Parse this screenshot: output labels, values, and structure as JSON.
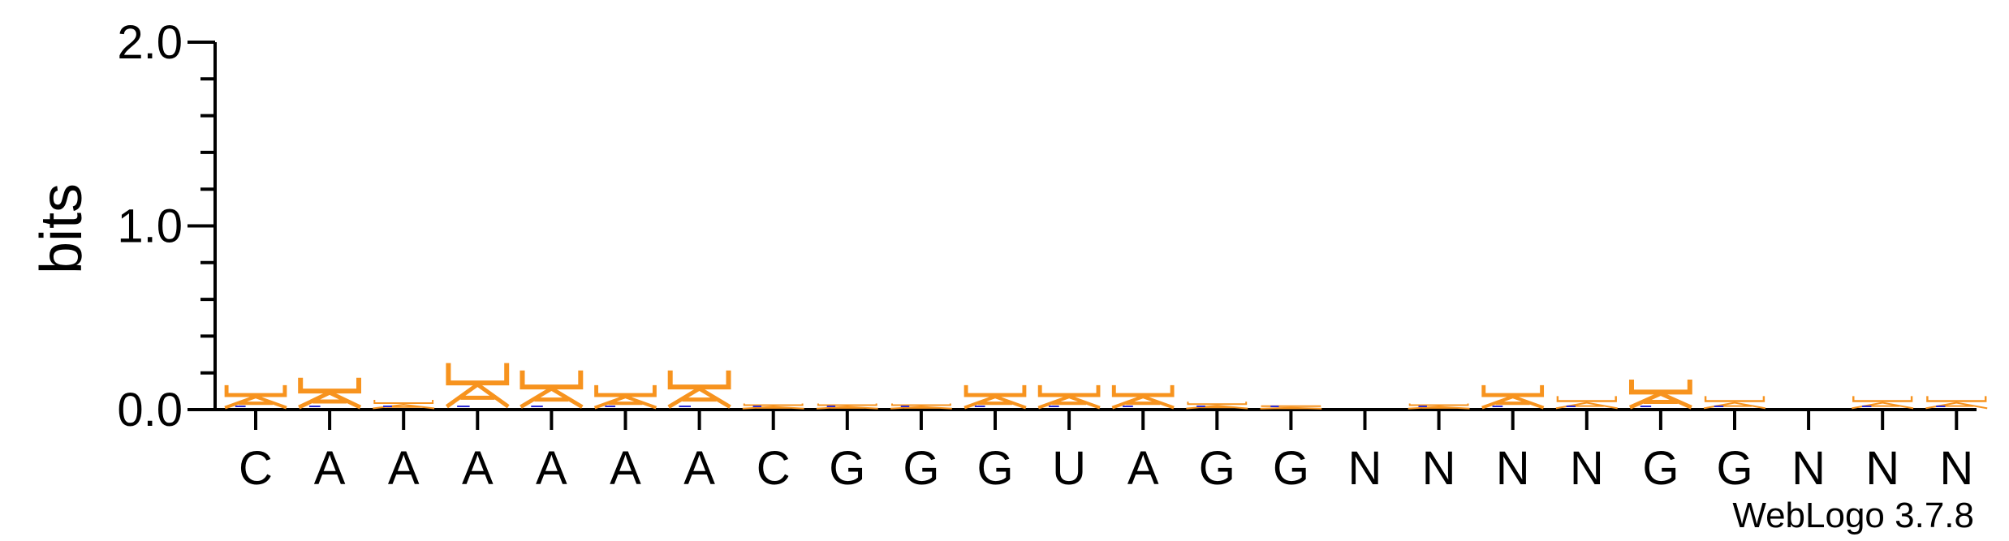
{
  "chart_data": {
    "type": "sequence-logo",
    "ylabel": "bits",
    "ylim": [
      0,
      2.0
    ],
    "yticks": [
      "0.0",
      "1.0",
      "2.0"
    ],
    "categories": [
      "C",
      "A",
      "A",
      "A",
      "A",
      "A",
      "A",
      "C",
      "G",
      "G",
      "G",
      "U",
      "A",
      "G",
      "G",
      "N",
      "N",
      "N",
      "N",
      "G",
      "G",
      "N",
      "N",
      "N"
    ],
    "stack_heights": [
      0.12,
      0.16,
      0.04,
      0.24,
      0.2,
      0.12,
      0.2,
      0.02,
      0.02,
      0.02,
      0.12,
      0.12,
      0.12,
      0.03,
      0.01,
      0.0,
      0.02,
      0.12,
      0.06,
      0.15,
      0.06,
      0.0,
      0.06,
      0.06
    ],
    "colors": {
      "A": "#f7931e",
      "U": "#f7931e",
      "G": "#f7931e",
      "C": "#2b2bd6"
    },
    "credit": "WebLogo 3.7.8"
  }
}
